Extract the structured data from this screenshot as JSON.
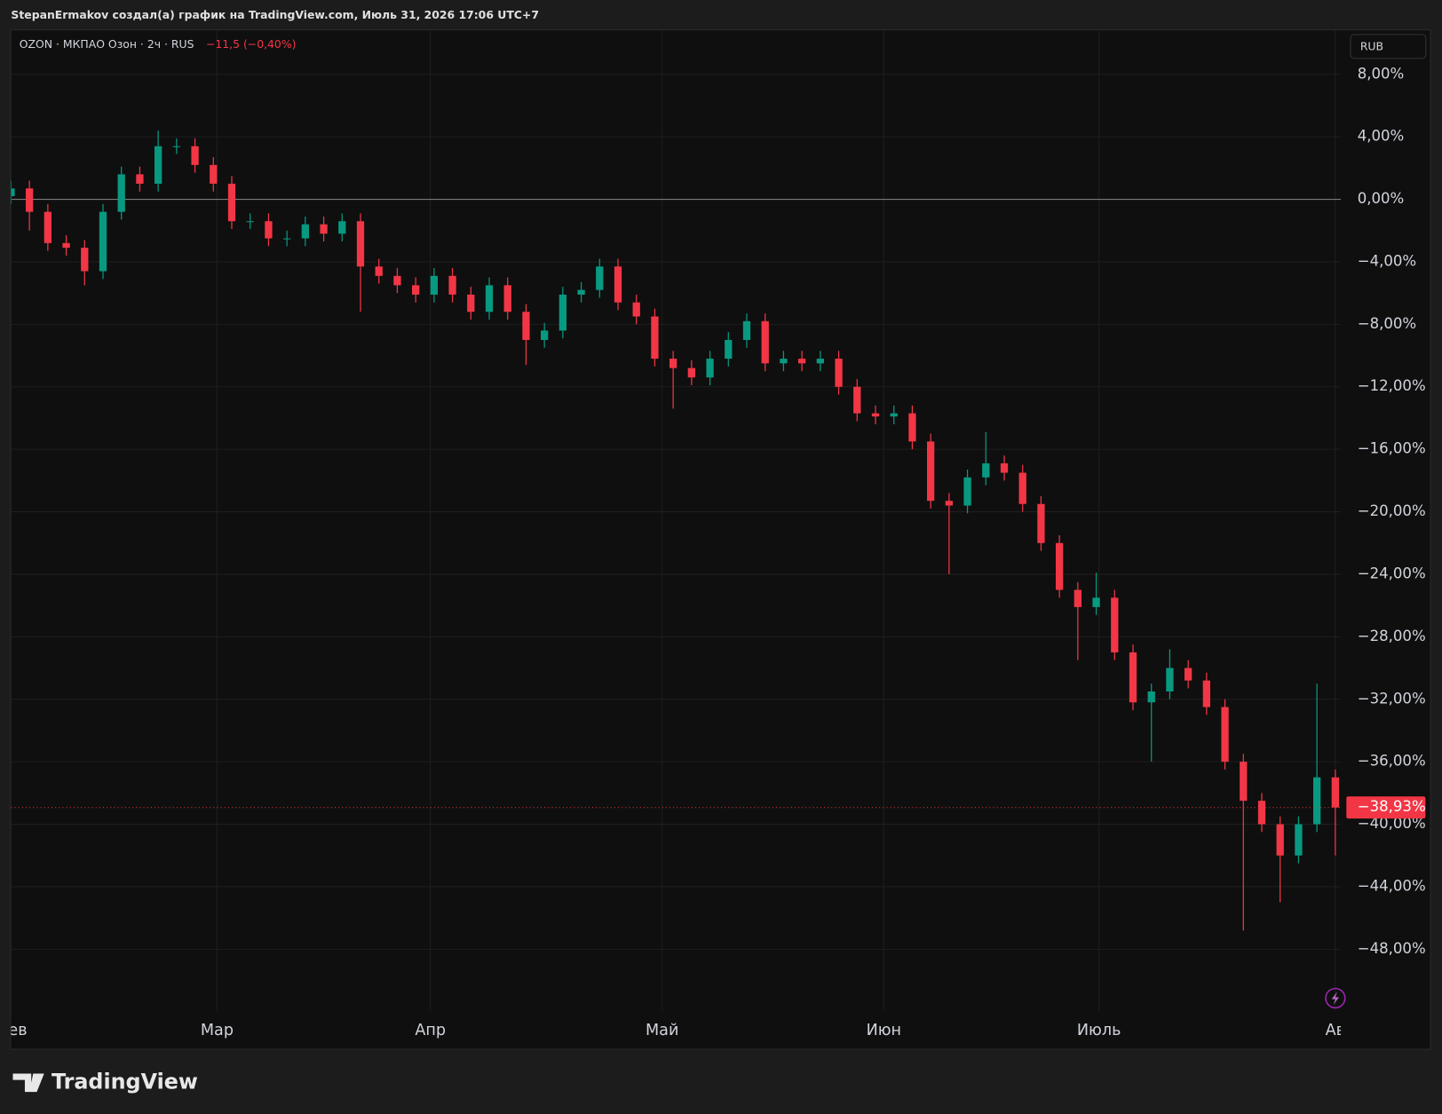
{
  "header": {
    "caption": "StepanErmakov создал(а) график на TradingView.com, Июль 31, 2026 17:06 UTC+7"
  },
  "chart_data": {
    "type": "candlestick",
    "symbol_info": "OZON · МКПАО Озон · 2ч · RUS",
    "change_label": "−11,5 (−0,40%)",
    "currency": "RUB",
    "categories": [
      null,
      null,
      null,
      null,
      null,
      null,
      null,
      null,
      null,
      null,
      null,
      null,
      null,
      null,
      null,
      null,
      null,
      null,
      null,
      null,
      null,
      null,
      null,
      null,
      null,
      null,
      null,
      null,
      null,
      null,
      null,
      null,
      null,
      null,
      null,
      null,
      null,
      null,
      null,
      null,
      null,
      null,
      null,
      null,
      null,
      null,
      null,
      null,
      null,
      null,
      null,
      null,
      null,
      null,
      null,
      null,
      null,
      null,
      null,
      null,
      null,
      null,
      null,
      null,
      null,
      null,
      null,
      null,
      null,
      null,
      null,
      null,
      null
    ],
    "open": [
      0.2,
      0.7,
      -0.8,
      -2.8,
      -3.1,
      -4.6,
      -0.8,
      1.6,
      1.0,
      3.4,
      3.4,
      2.2,
      1.0,
      -1.4,
      -1.4,
      -2.5,
      -2.5,
      -1.6,
      -2.2,
      -1.4,
      -4.3,
      -4.9,
      -5.5,
      -6.1,
      -4.9,
      -6.1,
      -7.2,
      -5.5,
      -7.2,
      -9.0,
      -8.4,
      -6.1,
      -5.8,
      -4.3,
      -6.6,
      -7.5,
      -10.2,
      -10.8,
      -11.4,
      -10.2,
      -9.0,
      -7.8,
      -10.5,
      -10.2,
      -10.5,
      -10.2,
      -12.0,
      -13.7,
      -13.9,
      -13.7,
      -15.5,
      -19.3,
      -19.6,
      -17.8,
      -16.9,
      -17.5,
      -19.5,
      -22.0,
      -25.0,
      -26.1,
      -25.5,
      -29.0,
      -32.2,
      -31.5,
      -30.0,
      -30.8,
      -32.5,
      -36.0,
      -38.5,
      -40.0,
      -42.0,
      -40.0,
      -37.0
    ],
    "high": [
      1.2,
      1.2,
      -0.3,
      -2.3,
      -2.6,
      -0.3,
      2.1,
      2.1,
      4.4,
      3.9,
      3.9,
      2.7,
      1.5,
      -0.9,
      -0.9,
      -2.0,
      -1.1,
      -1.1,
      -0.9,
      -0.9,
      -3.8,
      -4.4,
      -5.0,
      -4.4,
      -4.4,
      -5.6,
      -5.0,
      -5.0,
      -6.7,
      -7.9,
      -5.6,
      -5.3,
      -3.8,
      -3.8,
      -6.1,
      -7.0,
      -9.7,
      -10.3,
      -9.7,
      -8.5,
      -7.3,
      -7.3,
      -9.7,
      -9.7,
      -9.7,
      -9.7,
      -11.5,
      -13.2,
      -13.2,
      -13.2,
      -15.0,
      -18.8,
      -17.3,
      -14.9,
      -16.4,
      -17.0,
      -19.0,
      -21.5,
      -24.5,
      -23.9,
      -25.0,
      -28.5,
      -31.0,
      -28.8,
      -29.5,
      -30.3,
      -32.0,
      -35.5,
      -38.0,
      -39.5,
      -39.5,
      -31.0,
      -36.5
    ],
    "low": [
      -0.3,
      -2.0,
      -3.3,
      -3.6,
      -5.5,
      -5.1,
      -1.3,
      0.5,
      0.5,
      2.9,
      1.7,
      0.5,
      -1.9,
      -1.9,
      -3.0,
      -3.0,
      -3.0,
      -2.7,
      -2.7,
      -7.2,
      -5.4,
      -6.0,
      -6.6,
      -6.6,
      -6.6,
      -7.7,
      -7.7,
      -7.7,
      -10.6,
      -9.5,
      -8.9,
      -6.6,
      -6.3,
      -7.1,
      -8.0,
      -10.7,
      -13.4,
      -11.9,
      -11.9,
      -10.7,
      -9.5,
      -11.0,
      -11.0,
      -11.0,
      -11.0,
      -12.5,
      -14.2,
      -14.4,
      -14.4,
      -16.0,
      -19.8,
      -24.0,
      -20.1,
      -18.3,
      -18.0,
      -20.0,
      -22.5,
      -25.5,
      -29.5,
      -26.6,
      -29.5,
      -32.7,
      -36.0,
      -32.0,
      -31.3,
      -33.0,
      -36.5,
      -46.8,
      -40.5,
      -45.0,
      -42.5,
      -40.5,
      -42.0
    ],
    "close": [
      0.7,
      -0.8,
      -2.8,
      -3.1,
      -4.6,
      -0.8,
      1.6,
      1.0,
      3.4,
      3.4,
      2.2,
      1.0,
      -1.4,
      -1.4,
      -2.5,
      -2.5,
      -1.6,
      -2.2,
      -1.4,
      -4.3,
      -4.9,
      -5.5,
      -6.1,
      -4.9,
      -6.1,
      -7.2,
      -5.5,
      -7.2,
      -9.0,
      -8.4,
      -6.1,
      -5.8,
      -4.3,
      -6.6,
      -7.5,
      -10.2,
      -10.8,
      -11.4,
      -10.2,
      -9.0,
      -7.8,
      -10.5,
      -10.2,
      -10.5,
      -10.2,
      -12.0,
      -13.7,
      -13.9,
      -13.7,
      -15.5,
      -19.3,
      -19.6,
      -17.8,
      -16.9,
      -17.5,
      -19.5,
      -22.0,
      -25.0,
      -26.1,
      -25.5,
      -29.0,
      -32.2,
      -31.5,
      -30.0,
      -30.8,
      -32.5,
      -36.0,
      -38.5,
      -40.0,
      -42.0,
      -40.0,
      -37.0,
      -38.93
    ],
    "up_color": "#089981",
    "down_color": "#f23645",
    "ylim": [
      -51.9,
      10.7
    ],
    "yticks": [
      {
        "value": 8,
        "label": "8,00%"
      },
      {
        "value": 4,
        "label": "4,00%"
      },
      {
        "value": 0,
        "label": "0,00%"
      },
      {
        "value": -4,
        "label": "−4,00%"
      },
      {
        "value": -8,
        "label": "−8,00%"
      },
      {
        "value": -12,
        "label": "−12,00%"
      },
      {
        "value": -16,
        "label": "−16,00%"
      },
      {
        "value": -20,
        "label": "−20,00%"
      },
      {
        "value": -24,
        "label": "−24,00%"
      },
      {
        "value": -28,
        "label": "−28,00%"
      },
      {
        "value": -32,
        "label": "−32,00%"
      },
      {
        "value": -36,
        "label": "−36,00%"
      },
      {
        "value": -40,
        "label": "−40,00%"
      },
      {
        "value": -44,
        "label": "−44,00%"
      },
      {
        "value": -48,
        "label": "−48,00%"
      }
    ],
    "xticks": [
      {
        "value": 0,
        "label": "Фев"
      },
      {
        "value": 11.2,
        "label": "Мар"
      },
      {
        "value": 22.8,
        "label": "Апр"
      },
      {
        "value": 35.4,
        "label": "Май"
      },
      {
        "value": 47.45,
        "label": "Июн"
      },
      {
        "value": 59.15,
        "label": "Июль"
      },
      {
        "value": 72,
        "label": "Ав"
      }
    ],
    "baseline": 0,
    "last_value": -38.93,
    "last_label": "−38,93%",
    "grid": true
  },
  "footer": {
    "brand": "TradingView"
  }
}
